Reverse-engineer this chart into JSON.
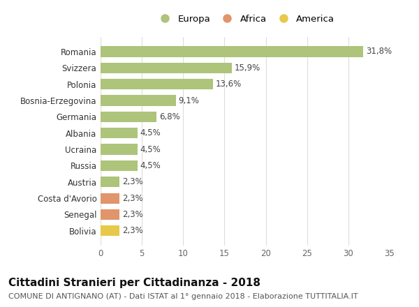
{
  "categories": [
    "Bolivia",
    "Senegal",
    "Costa d'Avorio",
    "Austria",
    "Russia",
    "Ucraina",
    "Albania",
    "Germania",
    "Bosnia-Erzegovina",
    "Polonia",
    "Svizzera",
    "Romania"
  ],
  "values": [
    2.3,
    2.3,
    2.3,
    2.3,
    4.5,
    4.5,
    4.5,
    6.8,
    9.1,
    13.6,
    15.9,
    31.8
  ],
  "labels": [
    "2,3%",
    "2,3%",
    "2,3%",
    "2,3%",
    "4,5%",
    "4,5%",
    "4,5%",
    "6,8%",
    "9,1%",
    "13,6%",
    "15,9%",
    "31,8%"
  ],
  "colors": [
    "#e8c84a",
    "#e0956a",
    "#e0956a",
    "#adc47a",
    "#adc47a",
    "#adc47a",
    "#adc47a",
    "#adc47a",
    "#adc47a",
    "#adc47a",
    "#adc47a",
    "#adc47a"
  ],
  "continent": [
    "America",
    "Africa",
    "Africa",
    "Europa",
    "Europa",
    "Europa",
    "Europa",
    "Europa",
    "Europa",
    "Europa",
    "Europa",
    "Europa"
  ],
  "europa_color": "#adc47a",
  "africa_color": "#e0956a",
  "america_color": "#e8c84a",
  "title": "Cittadini Stranieri per Cittadinanza - 2018",
  "subtitle": "COMUNE DI ANTIGNANO (AT) - Dati ISTAT al 1° gennaio 2018 - Elaborazione TUTTITALIA.IT",
  "xlim": [
    0,
    35
  ],
  "xticks": [
    0,
    5,
    10,
    15,
    20,
    25,
    30,
    35
  ],
  "background_color": "#ffffff",
  "grid_color": "#dddddd",
  "bar_height": 0.65,
  "title_fontsize": 11,
  "subtitle_fontsize": 8,
  "label_fontsize": 8.5,
  "tick_fontsize": 8.5,
  "legend_fontsize": 9.5
}
